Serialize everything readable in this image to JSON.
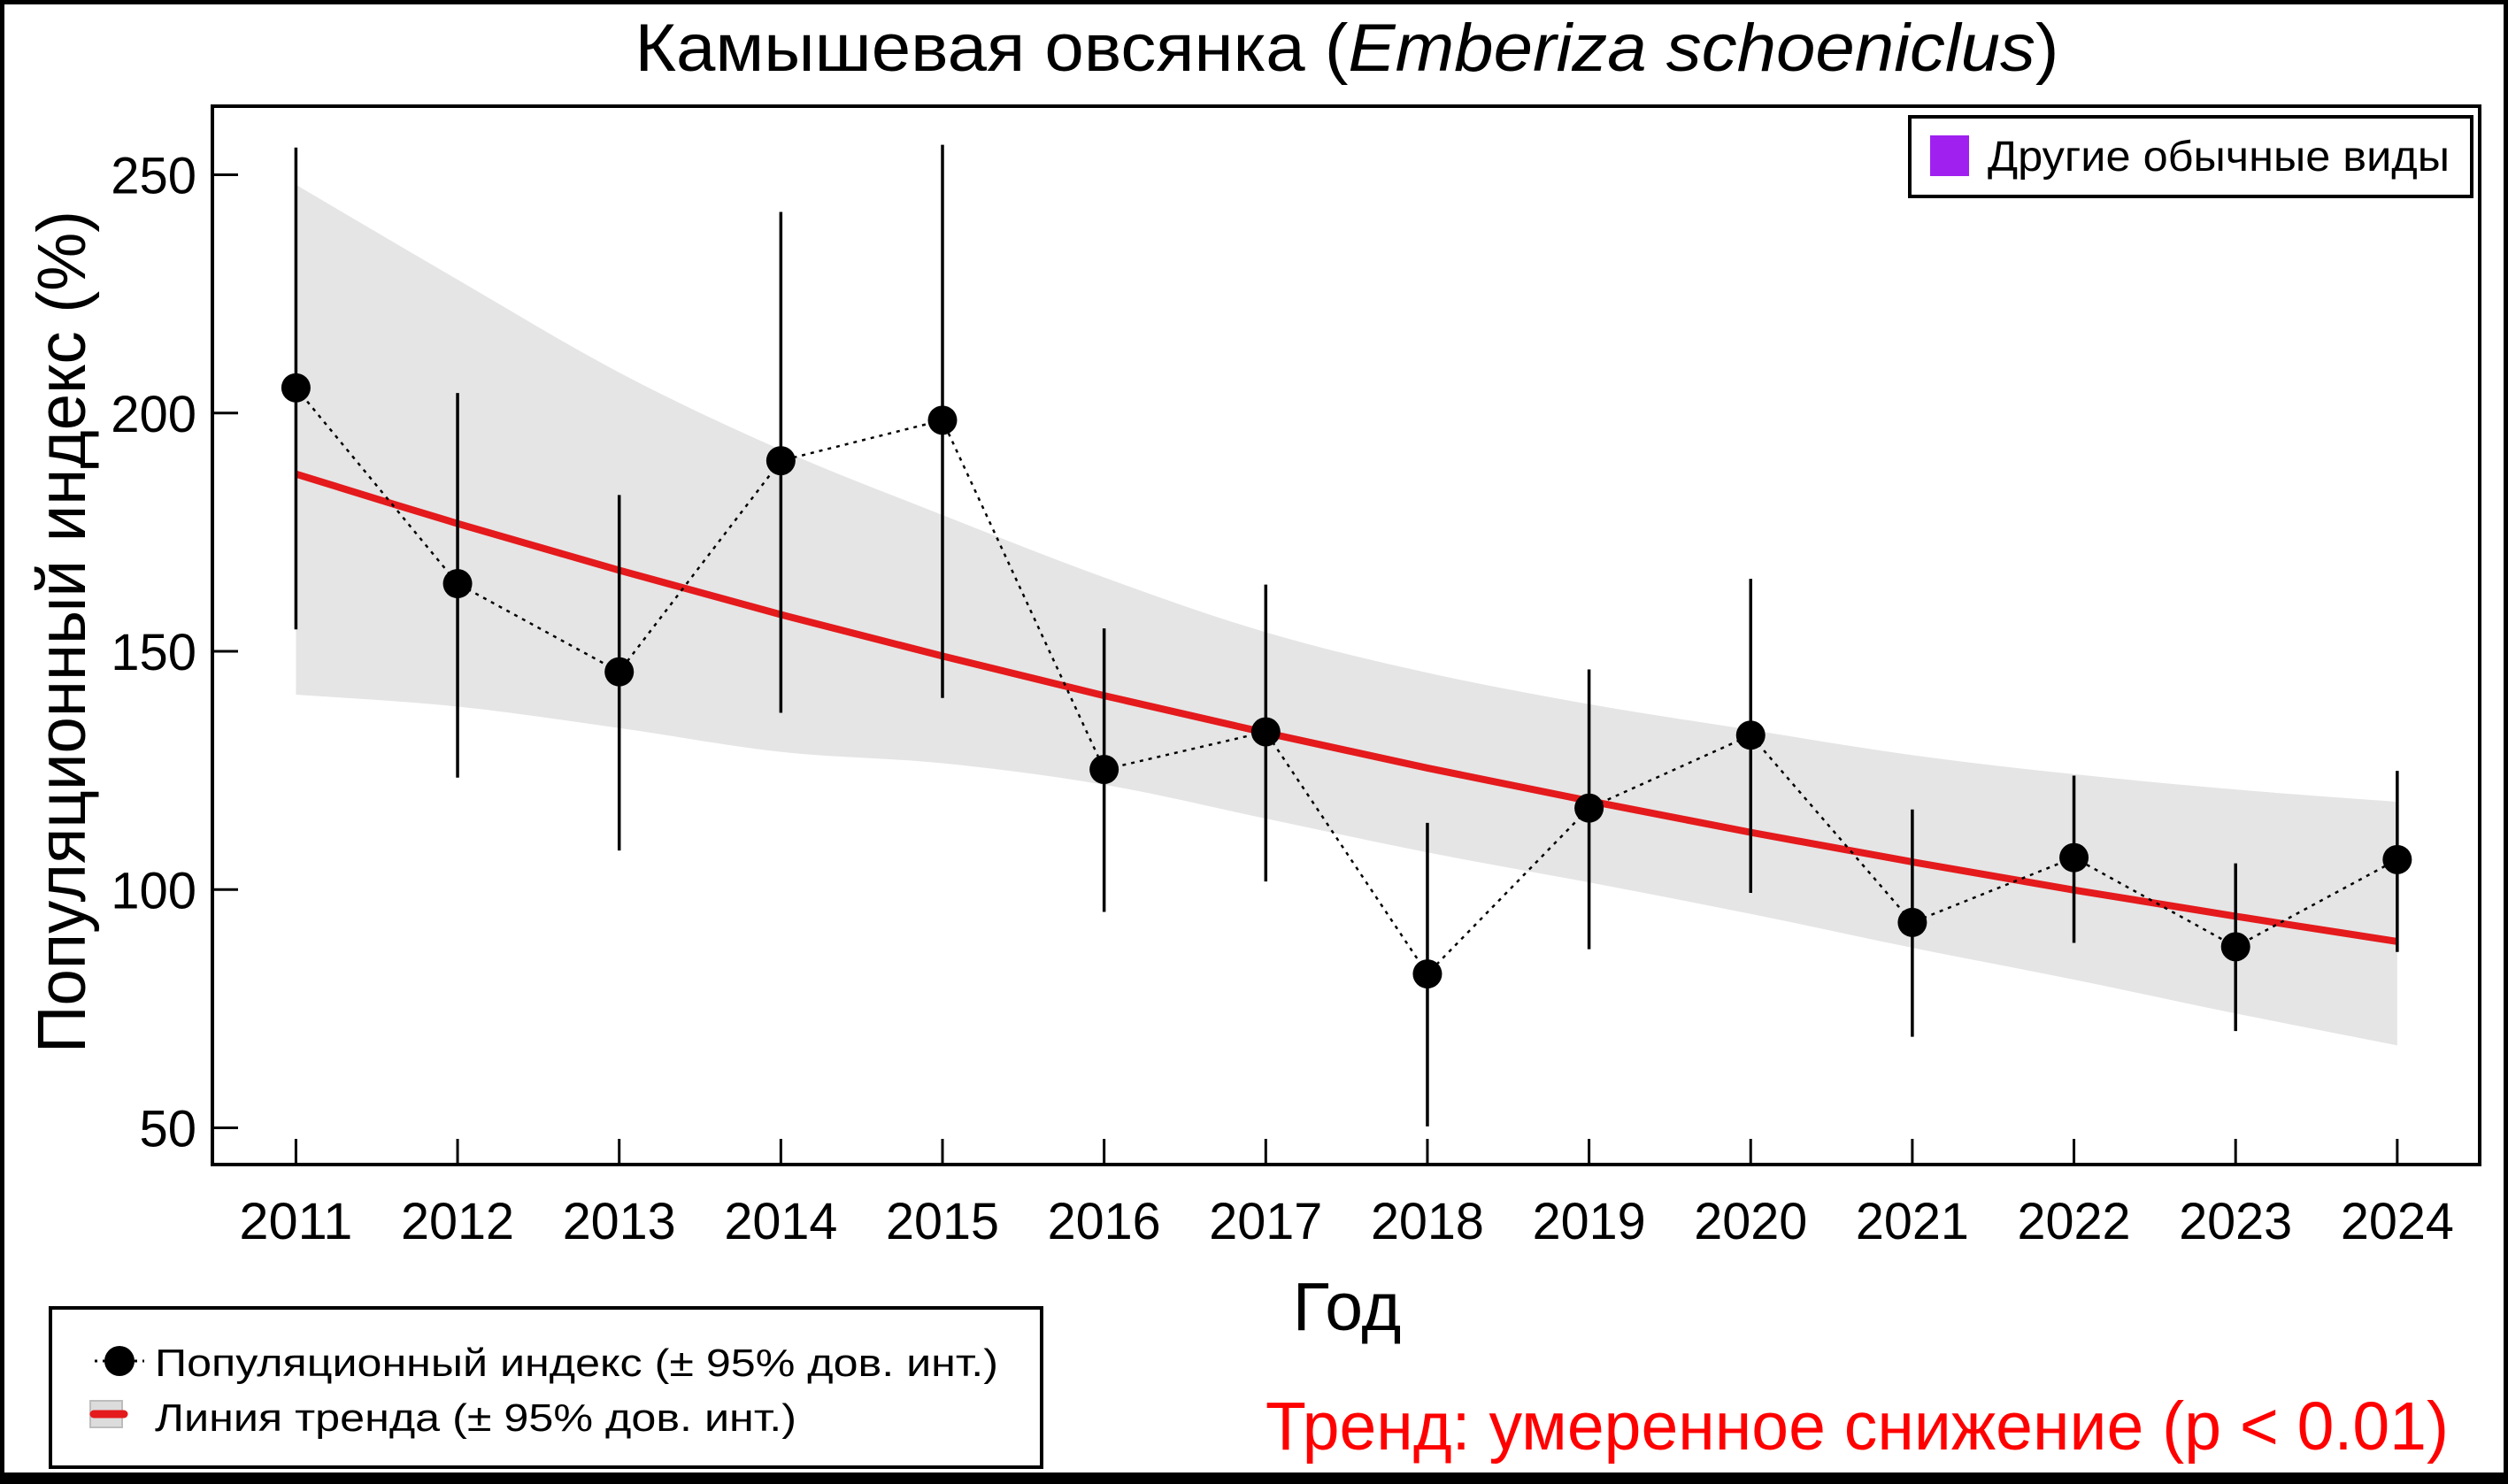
{
  "chart_data": {
    "type": "line",
    "title": {
      "common_name": "Камышевая овсянка (",
      "latin_name": "Emberiza schoeniclus",
      "close": ")"
    },
    "xlabel": "Год",
    "ylabel": "Популяционный индекс (%)",
    "xlim": [
      2011,
      2024
    ],
    "ylim": [
      50,
      256
    ],
    "y_ticks": [
      50,
      100,
      150,
      200,
      250
    ],
    "y_tick_labels": [
      "50",
      "100",
      "150",
      "200",
      "250"
    ],
    "x": [
      2011,
      2012,
      2013,
      2014,
      2015,
      2016,
      2017,
      2018,
      2019,
      2020,
      2021,
      2022,
      2023,
      2024
    ],
    "x_tick_labels": [
      "2011",
      "2012",
      "2013",
      "2014",
      "2015",
      "2016",
      "2017",
      "2018",
      "2019",
      "2020",
      "2021",
      "2022",
      "2023",
      "2024"
    ],
    "grid": false,
    "series": [
      {
        "name": "Популяционный индекс (± 95% дов. инт.)",
        "kind": "points-with-errorbars",
        "values": [
          205.3,
          164.2,
          145.7,
          190.0,
          198.5,
          125.2,
          133.1,
          82.3,
          117.1,
          132.4,
          93.1,
          106.7,
          88.0,
          106.3
        ],
        "ci_lower": [
          154.6,
          123.5,
          108.2,
          137.1,
          140.2,
          95.3,
          101.7,
          50.3,
          87.5,
          99.3,
          69.1,
          88.8,
          70.3,
          86.9
        ],
        "ci_upper": [
          255.7,
          204.2,
          182.8,
          242.2,
          256.3,
          154.8,
          164.0,
          114.0,
          146.2,
          165.2,
          116.8,
          123.9,
          105.5,
          124.9
        ],
        "color": "#000000"
      },
      {
        "name": "Линия тренда (± 95% дов. инт.)",
        "kind": "trend-with-band",
        "values": [
          187.2,
          176.8,
          167.0,
          157.7,
          149.0,
          140.7,
          132.9,
          125.5,
          118.6,
          112.0,
          105.8,
          99.9,
          94.4,
          89.1
        ],
        "band_lower": [
          140.9,
          138.4,
          133.9,
          128.9,
          126.5,
          122.0,
          114.9,
          107.8,
          101.5,
          94.9,
          87.8,
          81.1,
          74.0,
          67.3
        ],
        "band_upper": [
          247.9,
          228.0,
          208.5,
          192.3,
          178.6,
          165.5,
          154.0,
          145.5,
          138.9,
          133.5,
          128.2,
          124.2,
          121.0,
          118.4
        ],
        "color": "#e41a1c",
        "band_color": "#e5e5e5"
      }
    ],
    "legend": {
      "position": "bottom-left",
      "entries": [
        "Популяционный индекс (± 95% дов. инт.)",
        "Линия тренда (± 95% дов. инт.)"
      ]
    },
    "group_legend": {
      "position": "top-right",
      "label": "Другие обычные виды",
      "color": "#a020f0"
    },
    "annotation": {
      "text": "Тренд: умеренное снижение (p < 0.01)",
      "color": "#ff0000",
      "position": "bottom-right"
    }
  }
}
